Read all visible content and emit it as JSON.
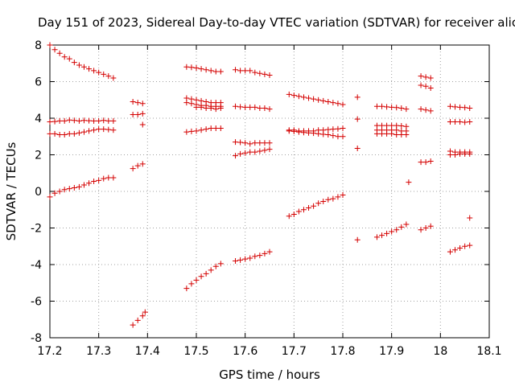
{
  "chart_data": {
    "type": "scatter",
    "title": "Day 151 of 2023, Sidereal Day-to-day VTEC variation (SDTVAR) for receiver alic",
    "xlabel": "GPS time / hours",
    "ylabel": "SDTVAR / TECUs",
    "xlim": [
      17.2,
      18.1
    ],
    "ylim": [
      -8,
      8
    ],
    "xticks": [
      "17.2",
      "17.3",
      "17.4",
      "17.5",
      "17.6",
      "17.7",
      "17.8",
      "17.9",
      "18",
      "18.1"
    ],
    "yticks": [
      "-8",
      "-6",
      "-4",
      "-2",
      "0",
      "2",
      "4",
      "6",
      "8"
    ],
    "grid": true,
    "marker": "+",
    "color": "#d40000",
    "series": [
      {
        "name": "s1",
        "x": [
          17.2,
          17.21,
          17.22,
          17.23,
          17.24,
          17.25,
          17.26,
          17.27,
          17.28,
          17.29,
          17.3,
          17.31,
          17.32,
          17.33
        ],
        "y": [
          8.0,
          7.75,
          7.55,
          7.35,
          7.25,
          7.05,
          6.9,
          6.8,
          6.7,
          6.6,
          6.5,
          6.4,
          6.3,
          6.2
        ]
      },
      {
        "name": "s2",
        "x": [
          17.2,
          17.21,
          17.22,
          17.23,
          17.24,
          17.25,
          17.26,
          17.27,
          17.28,
          17.29,
          17.3,
          17.31,
          17.32,
          17.33
        ],
        "y": [
          3.8,
          3.82,
          3.85,
          3.85,
          3.9,
          3.88,
          3.85,
          3.88,
          3.86,
          3.85,
          3.85,
          3.88,
          3.85,
          3.85
        ]
      },
      {
        "name": "s3",
        "x": [
          17.2,
          17.21,
          17.22,
          17.23,
          17.24,
          17.25,
          17.26,
          17.27,
          17.28,
          17.29,
          17.3,
          17.31,
          17.32,
          17.33
        ],
        "y": [
          3.15,
          3.15,
          3.1,
          3.1,
          3.15,
          3.15,
          3.2,
          3.25,
          3.3,
          3.35,
          3.4,
          3.4,
          3.38,
          3.35
        ]
      },
      {
        "name": "s4",
        "x": [
          17.2,
          17.21,
          17.22,
          17.23,
          17.24,
          17.25,
          17.26,
          17.27,
          17.28,
          17.29,
          17.3,
          17.31,
          17.32,
          17.33
        ],
        "y": [
          -0.3,
          -0.1,
          0.0,
          0.1,
          0.15,
          0.2,
          0.25,
          0.35,
          0.45,
          0.55,
          0.6,
          0.7,
          0.75,
          0.75
        ]
      },
      {
        "name": "s5",
        "x": [
          17.37,
          17.38,
          17.39
        ],
        "y": [
          4.9,
          4.85,
          4.8
        ]
      },
      {
        "name": "s6",
        "x": [
          17.37,
          17.38,
          17.39
        ],
        "y": [
          4.2,
          4.2,
          4.25
        ]
      },
      {
        "name": "s7",
        "x": [
          17.39
        ],
        "y": [
          3.65
        ]
      },
      {
        "name": "s8",
        "x": [
          17.37,
          17.38,
          17.39
        ],
        "y": [
          1.25,
          1.4,
          1.5
        ]
      },
      {
        "name": "s9",
        "x": [
          17.37,
          17.38,
          17.39,
          17.395
        ],
        "y": [
          -7.3,
          -7.05,
          -6.8,
          -6.6
        ]
      },
      {
        "name": "s10",
        "x": [
          17.48,
          17.49,
          17.5,
          17.51,
          17.52,
          17.53,
          17.54,
          17.55
        ],
        "y": [
          6.8,
          6.78,
          6.75,
          6.7,
          6.65,
          6.6,
          6.55,
          6.55
        ]
      },
      {
        "name": "s11",
        "x": [
          17.48,
          17.49,
          17.5,
          17.51,
          17.52,
          17.53,
          17.54,
          17.55
        ],
        "y": [
          5.1,
          5.05,
          5.0,
          4.95,
          4.9,
          4.85,
          4.85,
          4.85
        ]
      },
      {
        "name": "s12",
        "x": [
          17.48,
          17.49,
          17.5,
          17.51,
          17.52,
          17.53,
          17.54,
          17.55
        ],
        "y": [
          4.85,
          4.8,
          4.75,
          4.7,
          4.7,
          4.65,
          4.65,
          4.65
        ]
      },
      {
        "name": "s13",
        "x": [
          17.5,
          17.51,
          17.52,
          17.53,
          17.54,
          17.55
        ],
        "y": [
          4.6,
          4.6,
          4.55,
          4.55,
          4.5,
          4.55
        ]
      },
      {
        "name": "s14",
        "x": [
          17.48,
          17.49,
          17.5,
          17.51,
          17.52,
          17.53,
          17.54,
          17.55
        ],
        "y": [
          3.25,
          3.28,
          3.3,
          3.35,
          3.4,
          3.45,
          3.45,
          3.45
        ]
      },
      {
        "name": "s15",
        "x": [
          17.48,
          17.49,
          17.5,
          17.51,
          17.52,
          17.53,
          17.54,
          17.55
        ],
        "y": [
          -5.3,
          -5.05,
          -4.85,
          -4.65,
          -4.5,
          -4.3,
          -4.1,
          -3.95
        ]
      },
      {
        "name": "s16",
        "x": [
          17.58,
          17.59,
          17.6,
          17.61
        ],
        "y": [
          6.65,
          6.6,
          6.6,
          6.6
        ]
      },
      {
        "name": "s17",
        "x": [
          17.58,
          17.59,
          17.6,
          17.61
        ],
        "y": [
          4.65,
          4.62,
          4.6,
          4.6
        ]
      },
      {
        "name": "s18",
        "x": [
          17.58,
          17.59,
          17.6,
          17.61
        ],
        "y": [
          2.7,
          2.68,
          2.65,
          2.6
        ]
      },
      {
        "name": "s19",
        "x": [
          17.58,
          17.59,
          17.6,
          17.61
        ],
        "y": [
          1.95,
          2.05,
          2.1,
          2.15
        ]
      },
      {
        "name": "s20",
        "x": [
          17.58,
          17.59,
          17.6,
          17.61
        ],
        "y": [
          -3.8,
          -3.75,
          -3.7,
          -3.65
        ]
      },
      {
        "name": "s21",
        "x": [
          17.62,
          17.63,
          17.64,
          17.65
        ],
        "y": [
          6.5,
          6.45,
          6.4,
          6.35
        ]
      },
      {
        "name": "s22",
        "x": [
          17.62,
          17.63,
          17.64,
          17.65
        ],
        "y": [
          4.6,
          4.55,
          4.55,
          4.5
        ]
      },
      {
        "name": "s23",
        "x": [
          17.62,
          17.63,
          17.64,
          17.65
        ],
        "y": [
          2.65,
          2.65,
          2.65,
          2.65
        ]
      },
      {
        "name": "s24",
        "x": [
          17.62,
          17.63,
          17.64,
          17.65
        ],
        "y": [
          2.15,
          2.2,
          2.25,
          2.3
        ]
      },
      {
        "name": "s25",
        "x": [
          17.62,
          17.63,
          17.64,
          17.65
        ],
        "y": [
          -3.55,
          -3.5,
          -3.4,
          -3.3
        ]
      },
      {
        "name": "s26",
        "x": [
          17.69,
          17.7,
          17.71,
          17.72,
          17.73,
          17.74,
          17.75,
          17.76,
          17.77,
          17.78,
          17.79,
          17.8
        ],
        "y": [
          5.3,
          5.25,
          5.2,
          5.15,
          5.1,
          5.05,
          5.0,
          4.95,
          4.9,
          4.85,
          4.8,
          4.75
        ]
      },
      {
        "name": "s27",
        "x": [
          17.69,
          17.7,
          17.71,
          17.72,
          17.73,
          17.74,
          17.75,
          17.76,
          17.77,
          17.78,
          17.79,
          17.8
        ],
        "y": [
          3.35,
          3.35,
          3.3,
          3.3,
          3.3,
          3.3,
          3.35,
          3.35,
          3.38,
          3.4,
          3.42,
          3.45
        ]
      },
      {
        "name": "s28",
        "x": [
          17.69,
          17.7,
          17.71,
          17.72,
          17.73,
          17.74,
          17.75,
          17.76,
          17.77,
          17.78,
          17.79,
          17.8
        ],
        "y": [
          3.3,
          3.28,
          3.25,
          3.22,
          3.2,
          3.18,
          3.15,
          3.12,
          3.1,
          3.05,
          3.0,
          3.0
        ]
      },
      {
        "name": "s29",
        "x": [
          17.69,
          17.7,
          17.71,
          17.72,
          17.73,
          17.74,
          17.75,
          17.76,
          17.77,
          17.78,
          17.79,
          17.8
        ],
        "y": [
          -1.35,
          -1.25,
          -1.1,
          -1.0,
          -0.9,
          -0.8,
          -0.65,
          -0.55,
          -0.45,
          -0.4,
          -0.3,
          -0.2
        ]
      },
      {
        "name": "s30",
        "x": [
          17.83
        ],
        "y": [
          5.15
        ]
      },
      {
        "name": "s31",
        "x": [
          17.83
        ],
        "y": [
          3.95
        ]
      },
      {
        "name": "s32",
        "x": [
          17.83
        ],
        "y": [
          2.35
        ]
      },
      {
        "name": "s33",
        "x": [
          17.83
        ],
        "y": [
          -2.65
        ]
      },
      {
        "name": "s34",
        "x": [
          17.87,
          17.88,
          17.89,
          17.9,
          17.91,
          17.92,
          17.93
        ],
        "y": [
          4.65,
          4.65,
          4.62,
          4.6,
          4.58,
          4.55,
          4.5
        ]
      },
      {
        "name": "s35",
        "x": [
          17.87,
          17.88,
          17.89,
          17.9,
          17.91,
          17.92,
          17.93
        ],
        "y": [
          3.6,
          3.6,
          3.6,
          3.6,
          3.6,
          3.58,
          3.55
        ]
      },
      {
        "name": "s36",
        "x": [
          17.87,
          17.88,
          17.89,
          17.9,
          17.91,
          17.92,
          17.93
        ],
        "y": [
          3.35,
          3.35,
          3.35,
          3.35,
          3.35,
          3.3,
          3.3
        ]
      },
      {
        "name": "s37",
        "x": [
          17.87,
          17.88,
          17.89,
          17.9,
          17.91,
          17.92,
          17.93
        ],
        "y": [
          3.15,
          3.15,
          3.15,
          3.15,
          3.1,
          3.1,
          3.1
        ]
      },
      {
        "name": "s38",
        "x": [
          17.935
        ],
        "y": [
          0.5
        ]
      },
      {
        "name": "s39",
        "x": [
          17.87,
          17.88,
          17.89,
          17.9,
          17.91,
          17.92,
          17.93
        ],
        "y": [
          -2.5,
          -2.4,
          -2.3,
          -2.2,
          -2.1,
          -1.95,
          -1.8
        ]
      },
      {
        "name": "s40",
        "x": [
          17.96,
          17.97,
          17.98
        ],
        "y": [
          6.3,
          6.25,
          6.2
        ]
      },
      {
        "name": "s41",
        "x": [
          17.96,
          17.97,
          17.98
        ],
        "y": [
          5.8,
          5.75,
          5.65
        ]
      },
      {
        "name": "s42",
        "x": [
          17.96,
          17.97,
          17.98
        ],
        "y": [
          4.5,
          4.45,
          4.4
        ]
      },
      {
        "name": "s43",
        "x": [
          17.96,
          17.97,
          17.98
        ],
        "y": [
          1.6,
          1.6,
          1.65
        ]
      },
      {
        "name": "s44",
        "x": [
          17.96,
          17.97,
          17.98
        ],
        "y": [
          -2.1,
          -2.0,
          -1.9
        ]
      },
      {
        "name": "s45",
        "x": [
          18.02,
          18.03,
          18.04,
          18.05,
          18.06
        ],
        "y": [
          4.65,
          4.62,
          4.6,
          4.58,
          4.55
        ]
      },
      {
        "name": "s46",
        "x": [
          18.02,
          18.03,
          18.04,
          18.05,
          18.06
        ],
        "y": [
          3.8,
          3.8,
          3.8,
          3.78,
          3.8
        ]
      },
      {
        "name": "s47",
        "x": [
          18.02,
          18.03,
          18.04,
          18.05,
          18.06
        ],
        "y": [
          2.2,
          2.15,
          2.15,
          2.15,
          2.15
        ]
      },
      {
        "name": "s48",
        "x": [
          18.02,
          18.03,
          18.04,
          18.05,
          18.06
        ],
        "y": [
          2.0,
          2.0,
          2.05,
          2.05,
          2.05
        ]
      },
      {
        "name": "s49",
        "x": [
          18.06
        ],
        "y": [
          -1.45
        ]
      },
      {
        "name": "s50",
        "x": [
          18.02,
          18.03,
          18.04,
          18.05,
          18.06
        ],
        "y": [
          -3.3,
          -3.2,
          -3.1,
          -3.0,
          -2.95
        ]
      }
    ]
  }
}
